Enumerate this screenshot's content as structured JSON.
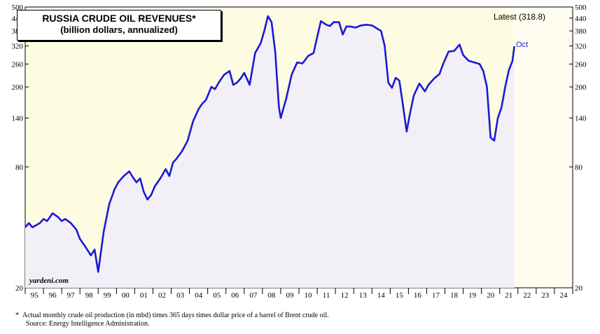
{
  "chart_data": {
    "type": "line",
    "title": "RUSSIA CRUDE OIL REVENUES*",
    "subtitle": "(billion dollars, annualized)",
    "scale": "log",
    "ylim": [
      20,
      500
    ],
    "yticks": [
      20,
      80,
      140,
      200,
      260,
      320,
      380,
      440,
      500
    ],
    "xticks": [
      "95",
      "96",
      "97",
      "98",
      "99",
      "00",
      "01",
      "02",
      "03",
      "04",
      "05",
      "06",
      "07",
      "08",
      "09",
      "10",
      "11",
      "12",
      "13",
      "14",
      "15",
      "16",
      "17",
      "18",
      "19",
      "20",
      "21",
      "22",
      "23",
      "24"
    ],
    "xlim": [
      1995.0,
      2025.0
    ],
    "latest_label": "Latest (318.8)",
    "last_point_label": "Oct",
    "watermark": "yardeni.com",
    "footnote": "Actual monthly crude oil production (in mbd) times 365 days times dollar price of a barrel of Brent crude oil.",
    "source": "Source: Energy Intelligence Administration.",
    "footnote_marker": "*",
    "colors": {
      "line": "#1a1ad6",
      "shade_area": "#fdfbe1",
      "fill": "#f3eff7"
    },
    "series": [
      {
        "x": [
          1995.0,
          1995.2,
          1995.4,
          1995.6,
          1995.8,
          1996.0,
          1996.2,
          1996.5,
          1996.8,
          1997.0,
          1997.2,
          1997.5,
          1997.8,
          1998.0,
          1998.3,
          1998.6,
          1998.8,
          1999.0,
          1999.1,
          1999.3,
          1999.6,
          1999.9,
          2000.1,
          2000.4,
          2000.7,
          2000.9,
          2001.1,
          2001.3,
          2001.5,
          2001.7,
          2001.9,
          2002.1,
          2002.4,
          2002.7,
          2002.9,
          2003.1,
          2003.3,
          2003.6,
          2003.9,
          2004.2,
          2004.5,
          2004.7,
          2004.9,
          2005.2,
          2005.4,
          2005.6,
          2005.9,
          2006.2,
          2006.4,
          2006.6,
          2006.8,
          2007.0,
          2007.3,
          2007.6,
          2007.9,
          2008.1,
          2008.3,
          2008.5,
          2008.7,
          2008.9,
          2009.0,
          2009.3,
          2009.6,
          2009.9,
          2010.2,
          2010.5,
          2010.8,
          2011.0,
          2011.2,
          2011.5,
          2011.7,
          2011.9,
          2012.2,
          2012.4,
          2012.6,
          2012.8,
          2013.1,
          2013.4,
          2013.7,
          2014.0,
          2014.3,
          2014.5,
          2014.7,
          2014.9,
          2015.1,
          2015.3,
          2015.5,
          2015.7,
          2015.9,
          2016.1,
          2016.3,
          2016.6,
          2016.9,
          2017.1,
          2017.4,
          2017.7,
          2017.9,
          2018.2,
          2018.5,
          2018.8,
          2019.0,
          2019.3,
          2019.6,
          2019.9,
          2020.1,
          2020.3,
          2020.5,
          2020.7,
          2020.9,
          2021.1,
          2021.3,
          2021.5,
          2021.7,
          2021.8
        ],
        "values": [
          40,
          42,
          40,
          41,
          42,
          44,
          43,
          47,
          45,
          43,
          44,
          42,
          39,
          35,
          32,
          29,
          31,
          24,
          28,
          38,
          52,
          62,
          67,
          72,
          76,
          71,
          67,
          70,
          60,
          55,
          58,
          64,
          70,
          78,
          72,
          84,
          88,
          96,
          108,
          135,
          155,
          165,
          172,
          200,
          195,
          210,
          230,
          240,
          205,
          210,
          220,
          235,
          205,
          295,
          330,
          380,
          450,
          420,
          300,
          160,
          140,
          175,
          230,
          265,
          262,
          285,
          295,
          355,
          425,
          408,
          402,
          420,
          420,
          365,
          400,
          400,
          395,
          405,
          408,
          405,
          390,
          380,
          320,
          210,
          198,
          222,
          215,
          162,
          120,
          150,
          182,
          208,
          190,
          205,
          220,
          232,
          260,
          300,
          302,
          325,
          288,
          270,
          265,
          260,
          240,
          200,
          112,
          108,
          140,
          158,
          200,
          242,
          270,
          318.8
        ]
      }
    ]
  }
}
